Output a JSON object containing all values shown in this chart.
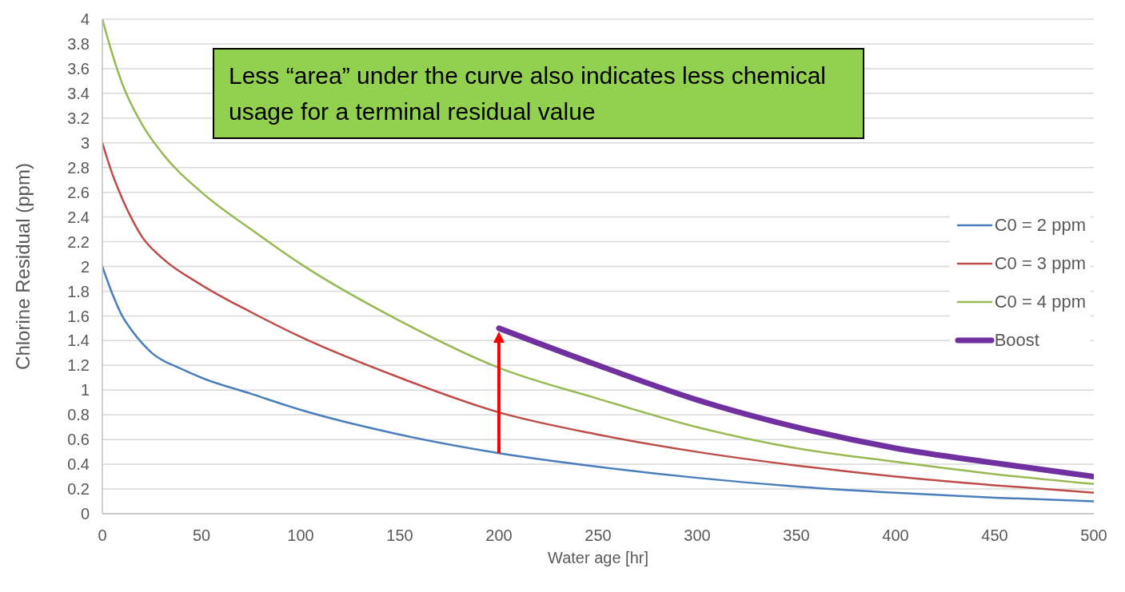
{
  "chart_data": {
    "type": "line",
    "xlabel": "Water age [hr]",
    "ylabel": "Chlorine Residual  (ppm)",
    "annotations": [
      "Less “area” under the curve also indicates less chemical usage for a terminal residual value"
    ],
    "xlim": [
      0,
      500
    ],
    "xticks": [
      0,
      50,
      100,
      150,
      200,
      250,
      300,
      350,
      400,
      450,
      500
    ],
    "ylim": [
      0,
      4
    ],
    "yticks": [
      0,
      0.2,
      0.4,
      0.6,
      0.8,
      1,
      1.2,
      1.4,
      1.6,
      1.8,
      2,
      2.2,
      2.4,
      2.6,
      2.8,
      3,
      3.2,
      3.4,
      3.6,
      3.8,
      4
    ],
    "grid": "y",
    "legend": "right",
    "marker": "none",
    "line_style": "solid",
    "series": [
      {
        "name": "C0 = 2 ppm",
        "color": "#4a7ebb",
        "x": [
          0,
          5,
          10,
          15,
          20,
          25,
          40,
          50,
          75,
          100,
          150,
          200,
          250,
          300,
          350,
          400,
          450,
          500
        ],
        "values": [
          2.0,
          1.78,
          1.6,
          1.48,
          1.38,
          1.3,
          1.17,
          1.1,
          0.97,
          0.84,
          0.64,
          0.49,
          0.38,
          0.29,
          0.22,
          0.17,
          0.13,
          0.1
        ]
      },
      {
        "name": "C0 = 3 ppm",
        "color": "#be4b48",
        "x": [
          0,
          5,
          10,
          15,
          20,
          30,
          50,
          75,
          100,
          150,
          200,
          250,
          300,
          350,
          400,
          450,
          500
        ],
        "values": [
          3.0,
          2.75,
          2.55,
          2.38,
          2.24,
          2.07,
          1.85,
          1.63,
          1.43,
          1.1,
          0.82,
          0.64,
          0.5,
          0.39,
          0.3,
          0.23,
          0.17
        ]
      },
      {
        "name": "C0 = 4 ppm",
        "color": "#98b954",
        "x": [
          0,
          5,
          10,
          20,
          30,
          50,
          75,
          100,
          150,
          200,
          250,
          300,
          350,
          400,
          450,
          500
        ],
        "values": [
          4.0,
          3.72,
          3.48,
          3.15,
          2.92,
          2.6,
          2.3,
          2.02,
          1.56,
          1.18,
          0.93,
          0.7,
          0.53,
          0.42,
          0.32,
          0.24
        ]
      },
      {
        "name": "Boost",
        "color": "#7030a0",
        "x": [
          200,
          250,
          300,
          350,
          400,
          450,
          500
        ],
        "values": [
          1.5,
          1.2,
          0.92,
          0.7,
          0.53,
          0.41,
          0.3
        ]
      }
    ]
  }
}
